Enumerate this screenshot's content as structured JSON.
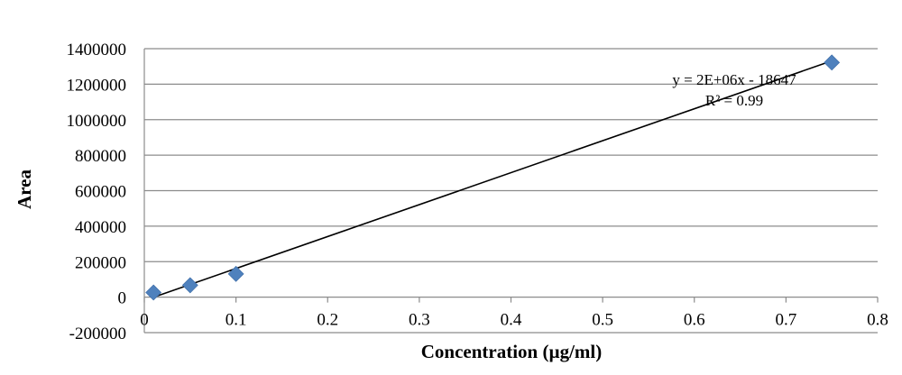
{
  "chart_data": {
    "type": "scatter",
    "xlabel": "Concentration (µg/ml)",
    "ylabel": "Area",
    "xlim": [
      0,
      0.8
    ],
    "ylim": [
      -200000,
      1400000
    ],
    "x_ticks": [
      "0",
      "0.1",
      "0.2",
      "0.3",
      "0.4",
      "0.5",
      "0.6",
      "0.7",
      "0.8"
    ],
    "y_ticks": [
      "-200000",
      "0",
      "200000",
      "400000",
      "600000",
      "800000",
      "1000000",
      "1200000",
      "1400000"
    ],
    "grid": "horizontal",
    "legend": "none",
    "series": [
      {
        "x": [
          0.01,
          0.05,
          0.1,
          0.75
        ],
        "y": [
          26000,
          67000,
          131000,
          1322000
        ],
        "color": "#4f81bd",
        "marker": "diamond"
      }
    ],
    "trendline": {
      "type": "linear",
      "x_range": [
        0.01,
        0.75
      ],
      "slope": 1800000,
      "intercept": -18647,
      "color": "#000000",
      "equation": "y = 2E+06x - 18647",
      "r_squared": "R² = 0.99"
    }
  }
}
